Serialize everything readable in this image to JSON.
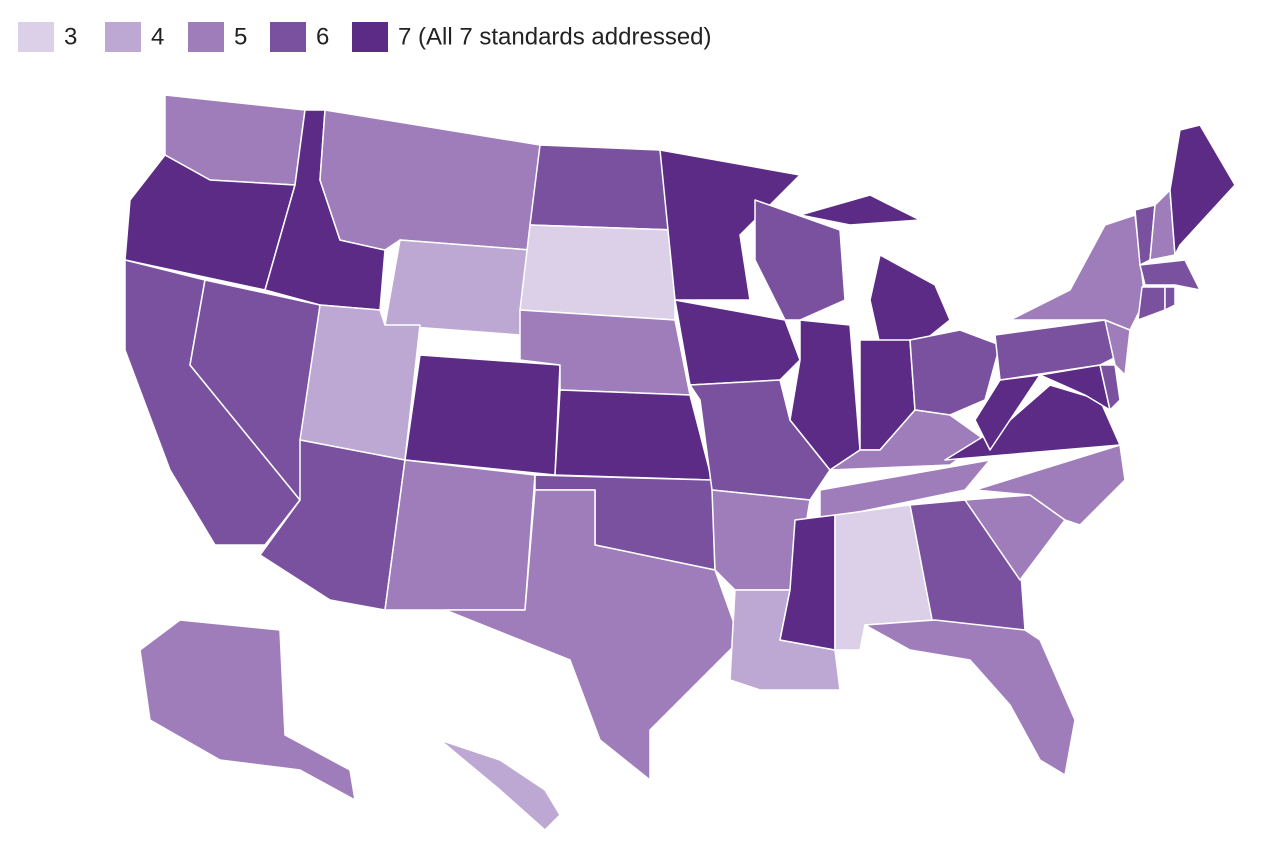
{
  "legend": [
    {
      "value": 3,
      "label": "3",
      "color": "#dcd0e8"
    },
    {
      "value": 4,
      "label": "4",
      "color": "#bca8d3"
    },
    {
      "value": 5,
      "label": "5",
      "color": "#9e7dba"
    },
    {
      "value": 6,
      "label": "6",
      "color": "#7a519f"
    },
    {
      "value": 7,
      "label": "7 (All 7 standards addressed)",
      "color": "#5c2b85"
    }
  ],
  "state_values": [
    5,
    7,
    6,
    6,
    7,
    5,
    4,
    4,
    6,
    7,
    5,
    6,
    3,
    5,
    7,
    6,
    5,
    7,
    7,
    6,
    5,
    4,
    6,
    7,
    7,
    7,
    6,
    5,
    5,
    7,
    3,
    6,
    5,
    5,
    5,
    7,
    7,
    7,
    6,
    6,
    5,
    5,
    6,
    6,
    6,
    6,
    5,
    7,
    5,
    4,
    3
  ]
}
